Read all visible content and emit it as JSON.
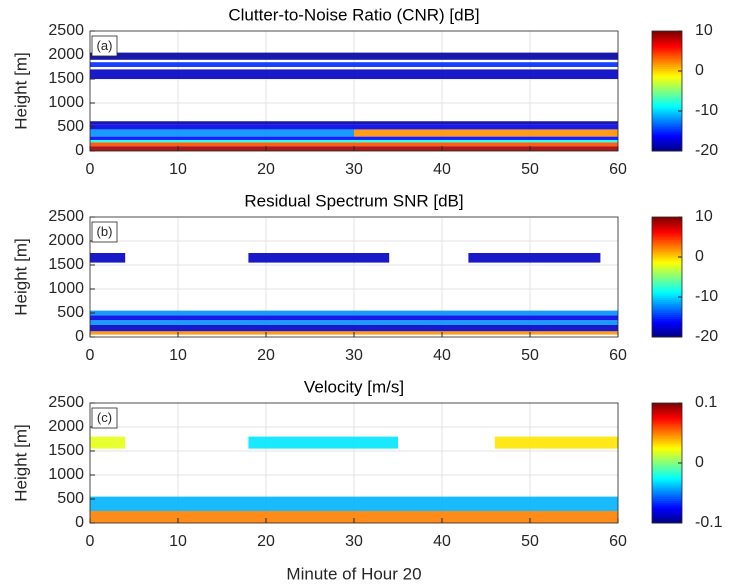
{
  "chart_data": [
    {
      "type": "heatmap",
      "title": "Clutter-to-Noise Ratio (CNR) [dB]",
      "panel_label": "(a)",
      "ylabel": "Height [m]",
      "xlim": [
        0,
        60
      ],
      "xticks": [
        0,
        10,
        20,
        30,
        40,
        50,
        60
      ],
      "ylim": [
        0,
        2500
      ],
      "yticks": [
        0,
        500,
        1000,
        1500,
        2000,
        2500
      ],
      "grid": true,
      "colormap": "jet",
      "clim": [
        -20,
        10
      ],
      "cticks": [
        -20,
        -10,
        0,
        10
      ],
      "cells": [
        {
          "x": [
            0,
            60
          ],
          "y": [
            0,
            100
          ],
          "value": 9
        },
        {
          "x": [
            0,
            60
          ],
          "y": [
            100,
            180
          ],
          "value": 4
        },
        {
          "x": [
            0,
            60
          ],
          "y": [
            180,
            230
          ],
          "value": -8
        },
        {
          "x": [
            0,
            60
          ],
          "y": [
            230,
            300
          ],
          "value": -16
        },
        {
          "x": [
            0,
            30
          ],
          "y": [
            300,
            450
          ],
          "value": -12
        },
        {
          "x": [
            30,
            60
          ],
          "y": [
            300,
            450
          ],
          "value": 2
        },
        {
          "x": [
            0,
            60
          ],
          "y": [
            450,
            560
          ],
          "value": -17
        },
        {
          "x": [
            0,
            60
          ],
          "y": [
            560,
            620
          ],
          "value": -19
        },
        {
          "x": [
            0,
            60
          ],
          "y": [
            1500,
            1700
          ],
          "value": -18
        },
        {
          "x": [
            0,
            60
          ],
          "y": [
            1750,
            1850
          ],
          "value": -15
        },
        {
          "x": [
            0,
            60
          ],
          "y": [
            1900,
            2050
          ],
          "value": -19
        }
      ]
    },
    {
      "type": "heatmap",
      "title": "Residual Spectrum SNR [dB]",
      "panel_label": "(b)",
      "ylabel": "Height [m]",
      "xlim": [
        0,
        60
      ],
      "xticks": [
        0,
        10,
        20,
        30,
        40,
        50,
        60
      ],
      "ylim": [
        0,
        2500
      ],
      "yticks": [
        0,
        500,
        1000,
        1500,
        2000,
        2500
      ],
      "grid": true,
      "colormap": "jet",
      "clim": [
        -20,
        10
      ],
      "cticks": [
        -20,
        -10,
        0,
        10
      ],
      "cells": [
        {
          "x": [
            0,
            60
          ],
          "y": [
            50,
            120
          ],
          "value": 2
        },
        {
          "x": [
            0,
            60
          ],
          "y": [
            120,
            250
          ],
          "value": -18
        },
        {
          "x": [
            0,
            60
          ],
          "y": [
            250,
            350
          ],
          "value": -12
        },
        {
          "x": [
            0,
            60
          ],
          "y": [
            350,
            450
          ],
          "value": -17
        },
        {
          "x": [
            0,
            60
          ],
          "y": [
            450,
            550
          ],
          "value": -12
        },
        {
          "x": [
            0,
            4
          ],
          "y": [
            1550,
            1750
          ],
          "value": -18
        },
        {
          "x": [
            18,
            34
          ],
          "y": [
            1550,
            1750
          ],
          "value": -18
        },
        {
          "x": [
            43,
            58
          ],
          "y": [
            1550,
            1750
          ],
          "value": -18
        }
      ]
    },
    {
      "type": "heatmap",
      "title": "Velocity [m/s]",
      "panel_label": "(c)",
      "ylabel": "Height [m]",
      "xlabel": "Minute of Hour 20",
      "xlim": [
        0,
        60
      ],
      "xticks": [
        0,
        10,
        20,
        30,
        40,
        50,
        60
      ],
      "ylim": [
        0,
        2500
      ],
      "yticks": [
        0,
        500,
        1000,
        1500,
        2000,
        2500
      ],
      "grid": true,
      "colormap": "jet",
      "clim": [
        -0.1,
        0.1
      ],
      "cticks": [
        -0.1,
        0,
        0.1
      ],
      "cells": [
        {
          "x": [
            0,
            60
          ],
          "y": [
            0,
            250
          ],
          "value": 0.05
        },
        {
          "x": [
            0,
            60
          ],
          "y": [
            250,
            550
          ],
          "value": -0.04
        },
        {
          "x": [
            0,
            4
          ],
          "y": [
            1550,
            1800
          ],
          "value": 0.02
        },
        {
          "x": [
            18,
            35
          ],
          "y": [
            1550,
            1800
          ],
          "value": -0.03
        },
        {
          "x": [
            46,
            60
          ],
          "y": [
            1550,
            1800
          ],
          "value": 0.03
        }
      ]
    }
  ]
}
